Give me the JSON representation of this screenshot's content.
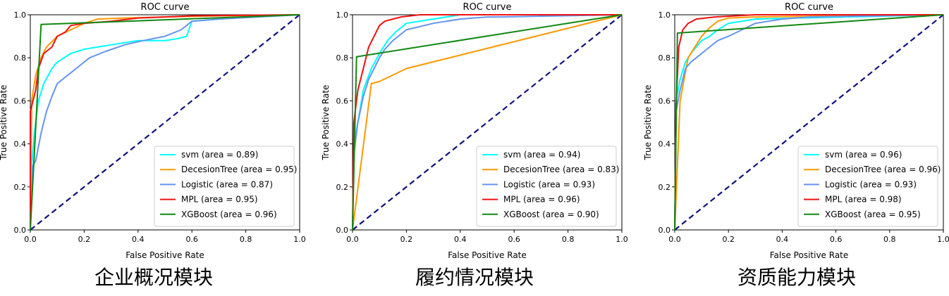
{
  "colors": {
    "svm": "#00ffff",
    "DecesionTree": "#ff9900",
    "Logistic": "#6495ed",
    "MPL": "#ee1111",
    "XGBoost": "#118811",
    "diagonal": "#101080"
  },
  "chart_data": [
    {
      "type": "line",
      "title": "ROC curve",
      "xlabel": "False Positive Rate",
      "ylabel": "True Positive Rate",
      "caption": "企业概况模块",
      "xlim": [
        0,
        1
      ],
      "ylim": [
        0,
        1
      ],
      "xticks": [
        "0.0",
        "0.2",
        "0.4",
        "0.6",
        "0.8",
        "1.0"
      ],
      "yticks": [
        "0.0",
        "0.2",
        "0.4",
        "0.6",
        "0.8",
        "1.0"
      ],
      "grid": false,
      "legend_position": "lower-right",
      "diagonal": true,
      "series": [
        {
          "key": "svm",
          "name": "svm (area = 0.89)",
          "points": [
            [
              0,
              0
            ],
            [
              0.005,
              0.3
            ],
            [
              0.015,
              0.45
            ],
            [
              0.03,
              0.6
            ],
            [
              0.05,
              0.68
            ],
            [
              0.08,
              0.75
            ],
            [
              0.1,
              0.78
            ],
            [
              0.15,
              0.82
            ],
            [
              0.2,
              0.84
            ],
            [
              0.25,
              0.85
            ],
            [
              0.3,
              0.86
            ],
            [
              0.4,
              0.88
            ],
            [
              0.5,
              0.88
            ],
            [
              0.55,
              0.89
            ],
            [
              0.58,
              0.9
            ],
            [
              0.6,
              0.97
            ],
            [
              0.7,
              0.98
            ],
            [
              0.8,
              0.99
            ],
            [
              1,
              1
            ]
          ]
        },
        {
          "key": "DecesionTree",
          "name": "DecesionTree (area = 0.95)",
          "points": [
            [
              0,
              0
            ],
            [
              0.005,
              0.6
            ],
            [
              0.02,
              0.72
            ],
            [
              0.04,
              0.8
            ],
            [
              0.06,
              0.85
            ],
            [
              0.1,
              0.9
            ],
            [
              0.15,
              0.93
            ],
            [
              0.2,
              0.96
            ],
            [
              0.25,
              0.98
            ],
            [
              0.35,
              0.985
            ],
            [
              0.5,
              0.99
            ],
            [
              0.7,
              0.995
            ],
            [
              1,
              1
            ]
          ]
        },
        {
          "key": "Logistic",
          "name": "Logistic (area = 0.87)",
          "points": [
            [
              0,
              0
            ],
            [
              0.01,
              0.3
            ],
            [
              0.02,
              0.32
            ],
            [
              0.04,
              0.45
            ],
            [
              0.06,
              0.55
            ],
            [
              0.08,
              0.62
            ],
            [
              0.1,
              0.68
            ],
            [
              0.14,
              0.72
            ],
            [
              0.18,
              0.76
            ],
            [
              0.22,
              0.8
            ],
            [
              0.28,
              0.83
            ],
            [
              0.35,
              0.86
            ],
            [
              0.42,
              0.88
            ],
            [
              0.5,
              0.9
            ],
            [
              0.56,
              0.93
            ],
            [
              0.6,
              0.97
            ],
            [
              0.7,
              0.98
            ],
            [
              1,
              1
            ]
          ]
        },
        {
          "key": "MPL",
          "name": "MPL (area = 0.95)",
          "points": [
            [
              0,
              0
            ],
            [
              0,
              0.55
            ],
            [
              0.01,
              0.6
            ],
            [
              0.02,
              0.65
            ],
            [
              0.03,
              0.75
            ],
            [
              0.05,
              0.82
            ],
            [
              0.08,
              0.85
            ],
            [
              0.1,
              0.9
            ],
            [
              0.13,
              0.92
            ],
            [
              0.15,
              0.95
            ],
            [
              0.2,
              0.96
            ],
            [
              0.3,
              0.97
            ],
            [
              0.4,
              0.985
            ],
            [
              0.5,
              0.99
            ],
            [
              0.6,
              0.995
            ],
            [
              1,
              1
            ]
          ]
        },
        {
          "key": "XGBoost",
          "name": "XGBoost (area = 0.96)",
          "points": [
            [
              0,
              0
            ],
            [
              0.04,
              0.955
            ],
            [
              1,
              1
            ]
          ]
        }
      ]
    },
    {
      "type": "line",
      "title": "ROC curve",
      "xlabel": "False Positive Rate",
      "ylabel": "True Positive Rate",
      "caption": "履约情况模块",
      "xlim": [
        0,
        1
      ],
      "ylim": [
        0,
        1
      ],
      "xticks": [
        "0.0",
        "0.2",
        "0.4",
        "0.6",
        "0.8",
        "1.0"
      ],
      "yticks": [
        "0.0",
        "0.2",
        "0.4",
        "0.6",
        "0.8",
        "1.0"
      ],
      "grid": false,
      "legend_position": "lower-right",
      "diagonal": true,
      "series": [
        {
          "key": "svm",
          "name": "svm (area = 0.94)",
          "points": [
            [
              0,
              0
            ],
            [
              0.005,
              0.4
            ],
            [
              0.02,
              0.5
            ],
            [
              0.04,
              0.65
            ],
            [
              0.07,
              0.75
            ],
            [
              0.1,
              0.82
            ],
            [
              0.13,
              0.88
            ],
            [
              0.16,
              0.92
            ],
            [
              0.2,
              0.96
            ],
            [
              0.3,
              0.98
            ],
            [
              0.4,
              1
            ],
            [
              1,
              1
            ]
          ]
        },
        {
          "key": "DecesionTree",
          "name": "DecesionTree (area = 0.83)",
          "points": [
            [
              0,
              0
            ],
            [
              0.07,
              0.68
            ],
            [
              0.1,
              0.69
            ],
            [
              0.2,
              0.75
            ],
            [
              1,
              1
            ]
          ]
        },
        {
          "key": "Logistic",
          "name": "Logistic (area = 0.93)",
          "points": [
            [
              0,
              0
            ],
            [
              0.005,
              0.35
            ],
            [
              0.02,
              0.5
            ],
            [
              0.04,
              0.62
            ],
            [
              0.06,
              0.7
            ],
            [
              0.08,
              0.75
            ],
            [
              0.1,
              0.8
            ],
            [
              0.12,
              0.84
            ],
            [
              0.15,
              0.88
            ],
            [
              0.2,
              0.93
            ],
            [
              0.3,
              0.96
            ],
            [
              0.4,
              0.98
            ],
            [
              0.5,
              0.99
            ],
            [
              0.55,
              0.99
            ],
            [
              1,
              1
            ]
          ]
        },
        {
          "key": "MPL",
          "name": "MPL (area = 0.96)",
          "points": [
            [
              0,
              0
            ],
            [
              0.005,
              0.5
            ],
            [
              0.02,
              0.65
            ],
            [
              0.04,
              0.75
            ],
            [
              0.06,
              0.85
            ],
            [
              0.08,
              0.9
            ],
            [
              0.1,
              0.95
            ],
            [
              0.12,
              0.97
            ],
            [
              0.15,
              0.98
            ],
            [
              0.18,
              0.99
            ],
            [
              0.25,
              1
            ],
            [
              1,
              1
            ]
          ]
        },
        {
          "key": "XGBoost",
          "name": "XGBoost (area = 0.90)",
          "points": [
            [
              0,
              0
            ],
            [
              0.015,
              0.805
            ],
            [
              1,
              1
            ]
          ]
        }
      ]
    },
    {
      "type": "line",
      "title": "ROC curve",
      "xlabel": "False Positive Rate",
      "ylabel": "True Positive Rate",
      "caption": "资质能力模块",
      "xlim": [
        0,
        1
      ],
      "ylim": [
        0,
        1
      ],
      "xticks": [
        "0.0",
        "0.2",
        "0.4",
        "0.6",
        "0.8",
        "1.0"
      ],
      "yticks": [
        "0.0",
        "0.2",
        "0.4",
        "0.6",
        "0.8",
        "1.0"
      ],
      "grid": false,
      "legend_position": "lower-right",
      "diagonal": true,
      "series": [
        {
          "key": "svm",
          "name": "svm (area = 0.96)",
          "points": [
            [
              0,
              0
            ],
            [
              0.005,
              0.6
            ],
            [
              0.02,
              0.7
            ],
            [
              0.04,
              0.78
            ],
            [
              0.06,
              0.82
            ],
            [
              0.08,
              0.85
            ],
            [
              0.1,
              0.88
            ],
            [
              0.13,
              0.9
            ],
            [
              0.16,
              0.93
            ],
            [
              0.2,
              0.96
            ],
            [
              0.25,
              0.97
            ],
            [
              0.3,
              0.98
            ],
            [
              1,
              1
            ]
          ]
        },
        {
          "key": "DecesionTree",
          "name": "DecesionTree (area = 0.96)",
          "points": [
            [
              0,
              0
            ],
            [
              0.02,
              0.6
            ],
            [
              0.05,
              0.8
            ],
            [
              0.08,
              0.86
            ],
            [
              0.1,
              0.9
            ],
            [
              0.13,
              0.94
            ],
            [
              0.16,
              0.97
            ],
            [
              0.2,
              0.985
            ],
            [
              0.3,
              0.99
            ],
            [
              1,
              1
            ]
          ]
        },
        {
          "key": "Logistic",
          "name": "Logistic (area = 0.93)",
          "points": [
            [
              0,
              0
            ],
            [
              0.005,
              0.55
            ],
            [
              0.02,
              0.65
            ],
            [
              0.04,
              0.75
            ],
            [
              0.06,
              0.78
            ],
            [
              0.08,
              0.8
            ],
            [
              0.1,
              0.82
            ],
            [
              0.13,
              0.85
            ],
            [
              0.16,
              0.88
            ],
            [
              0.2,
              0.9
            ],
            [
              0.25,
              0.93
            ],
            [
              0.3,
              0.96
            ],
            [
              0.4,
              0.98
            ],
            [
              0.5,
              0.99
            ],
            [
              1,
              1
            ]
          ]
        },
        {
          "key": "MPL",
          "name": "MPL (area = 0.98)",
          "points": [
            [
              0,
              0
            ],
            [
              0.005,
              0.58
            ],
            [
              0.015,
              0.85
            ],
            [
              0.03,
              0.93
            ],
            [
              0.05,
              0.96
            ],
            [
              0.08,
              0.98
            ],
            [
              0.15,
              0.99
            ],
            [
              0.3,
              1
            ],
            [
              1,
              1
            ]
          ]
        },
        {
          "key": "XGBoost",
          "name": "XGBoost (area = 0.95)",
          "points": [
            [
              0,
              0
            ],
            [
              0.01,
              0.915
            ],
            [
              1,
              1
            ]
          ]
        }
      ]
    }
  ]
}
